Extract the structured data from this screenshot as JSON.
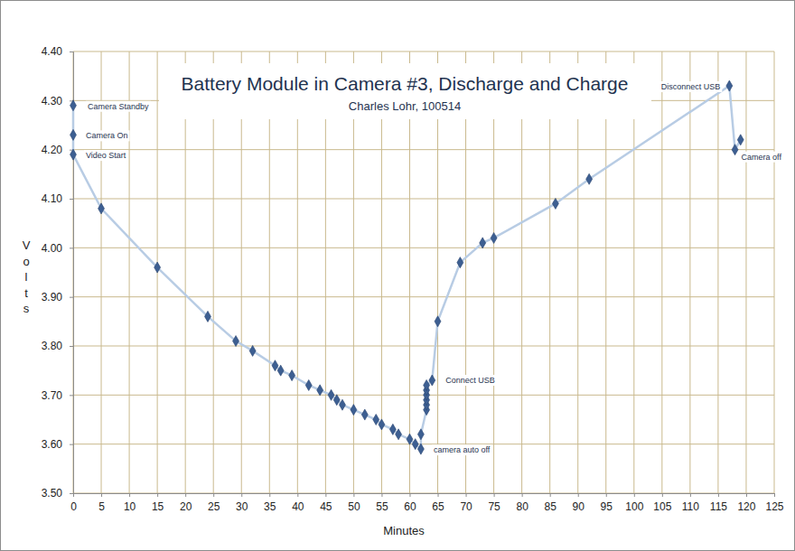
{
  "chart_data": {
    "type": "line",
    "title": "Battery Module in Camera #3, Discharge and Charge",
    "subtitle": "Charles Lohr, 100514",
    "x_label": "Minutes",
    "y_label": "Volts",
    "x": [
      0,
      0,
      0,
      5,
      15,
      24,
      29,
      32,
      36,
      37,
      39,
      42,
      44,
      46,
      47,
      48,
      50,
      52,
      54,
      55,
      57,
      58,
      60,
      61,
      62,
      62,
      63,
      63,
      63,
      63,
      63,
      63,
      64,
      65,
      69,
      73,
      75,
      86,
      92,
      117,
      118,
      119
    ],
    "values": [
      4.29,
      4.23,
      4.19,
      4.08,
      3.96,
      3.86,
      3.81,
      3.79,
      3.76,
      3.75,
      3.74,
      3.72,
      3.71,
      3.7,
      3.69,
      3.68,
      3.67,
      3.66,
      3.65,
      3.64,
      3.63,
      3.62,
      3.61,
      3.6,
      3.59,
      3.62,
      3.67,
      3.68,
      3.69,
      3.7,
      3.71,
      3.72,
      3.73,
      3.85,
      3.97,
      4.01,
      4.02,
      4.09,
      4.14,
      4.33,
      4.2,
      4.22
    ],
    "color": "#3d5f92",
    "marker": "diamond",
    "line_style": "solid",
    "grid": true,
    "xlim": [
      0,
      125
    ],
    "xticks": [
      0,
      5,
      10,
      15,
      20,
      25,
      30,
      35,
      40,
      45,
      50,
      55,
      60,
      65,
      70,
      75,
      80,
      85,
      90,
      95,
      100,
      105,
      110,
      115,
      120,
      125
    ],
    "ylim": [
      3.5,
      4.4
    ],
    "yticks": [
      {
        "value": 3.5,
        "label": "3.50"
      },
      {
        "value": 3.6,
        "label": "3.60"
      },
      {
        "value": 3.7,
        "label": "3.70"
      },
      {
        "value": 3.8,
        "label": "3.80"
      },
      {
        "value": 3.9,
        "label": "3.90"
      },
      {
        "value": 4.0,
        "label": "4.00"
      },
      {
        "value": 4.1,
        "label": "4.10"
      },
      {
        "value": 4.2,
        "label": "4.20"
      },
      {
        "value": 4.3,
        "label": "4.30"
      },
      {
        "value": 4.4,
        "label": "4.40"
      }
    ],
    "annotations": [
      {
        "text": "Camera Standby",
        "x": 0,
        "y": 4.29
      },
      {
        "text": "Camera On",
        "x": 0,
        "y": 4.23
      },
      {
        "text": "Video Start",
        "x": 0,
        "y": 4.19
      },
      {
        "text": "camera auto off",
        "x": 62,
        "y": 3.59
      },
      {
        "text": "Connect USB",
        "x": 64,
        "y": 3.73
      },
      {
        "text": "Disconnect USB",
        "x": 117,
        "y": 4.33
      },
      {
        "text": "Camera off",
        "x": 118,
        "y": 4.2
      }
    ]
  }
}
